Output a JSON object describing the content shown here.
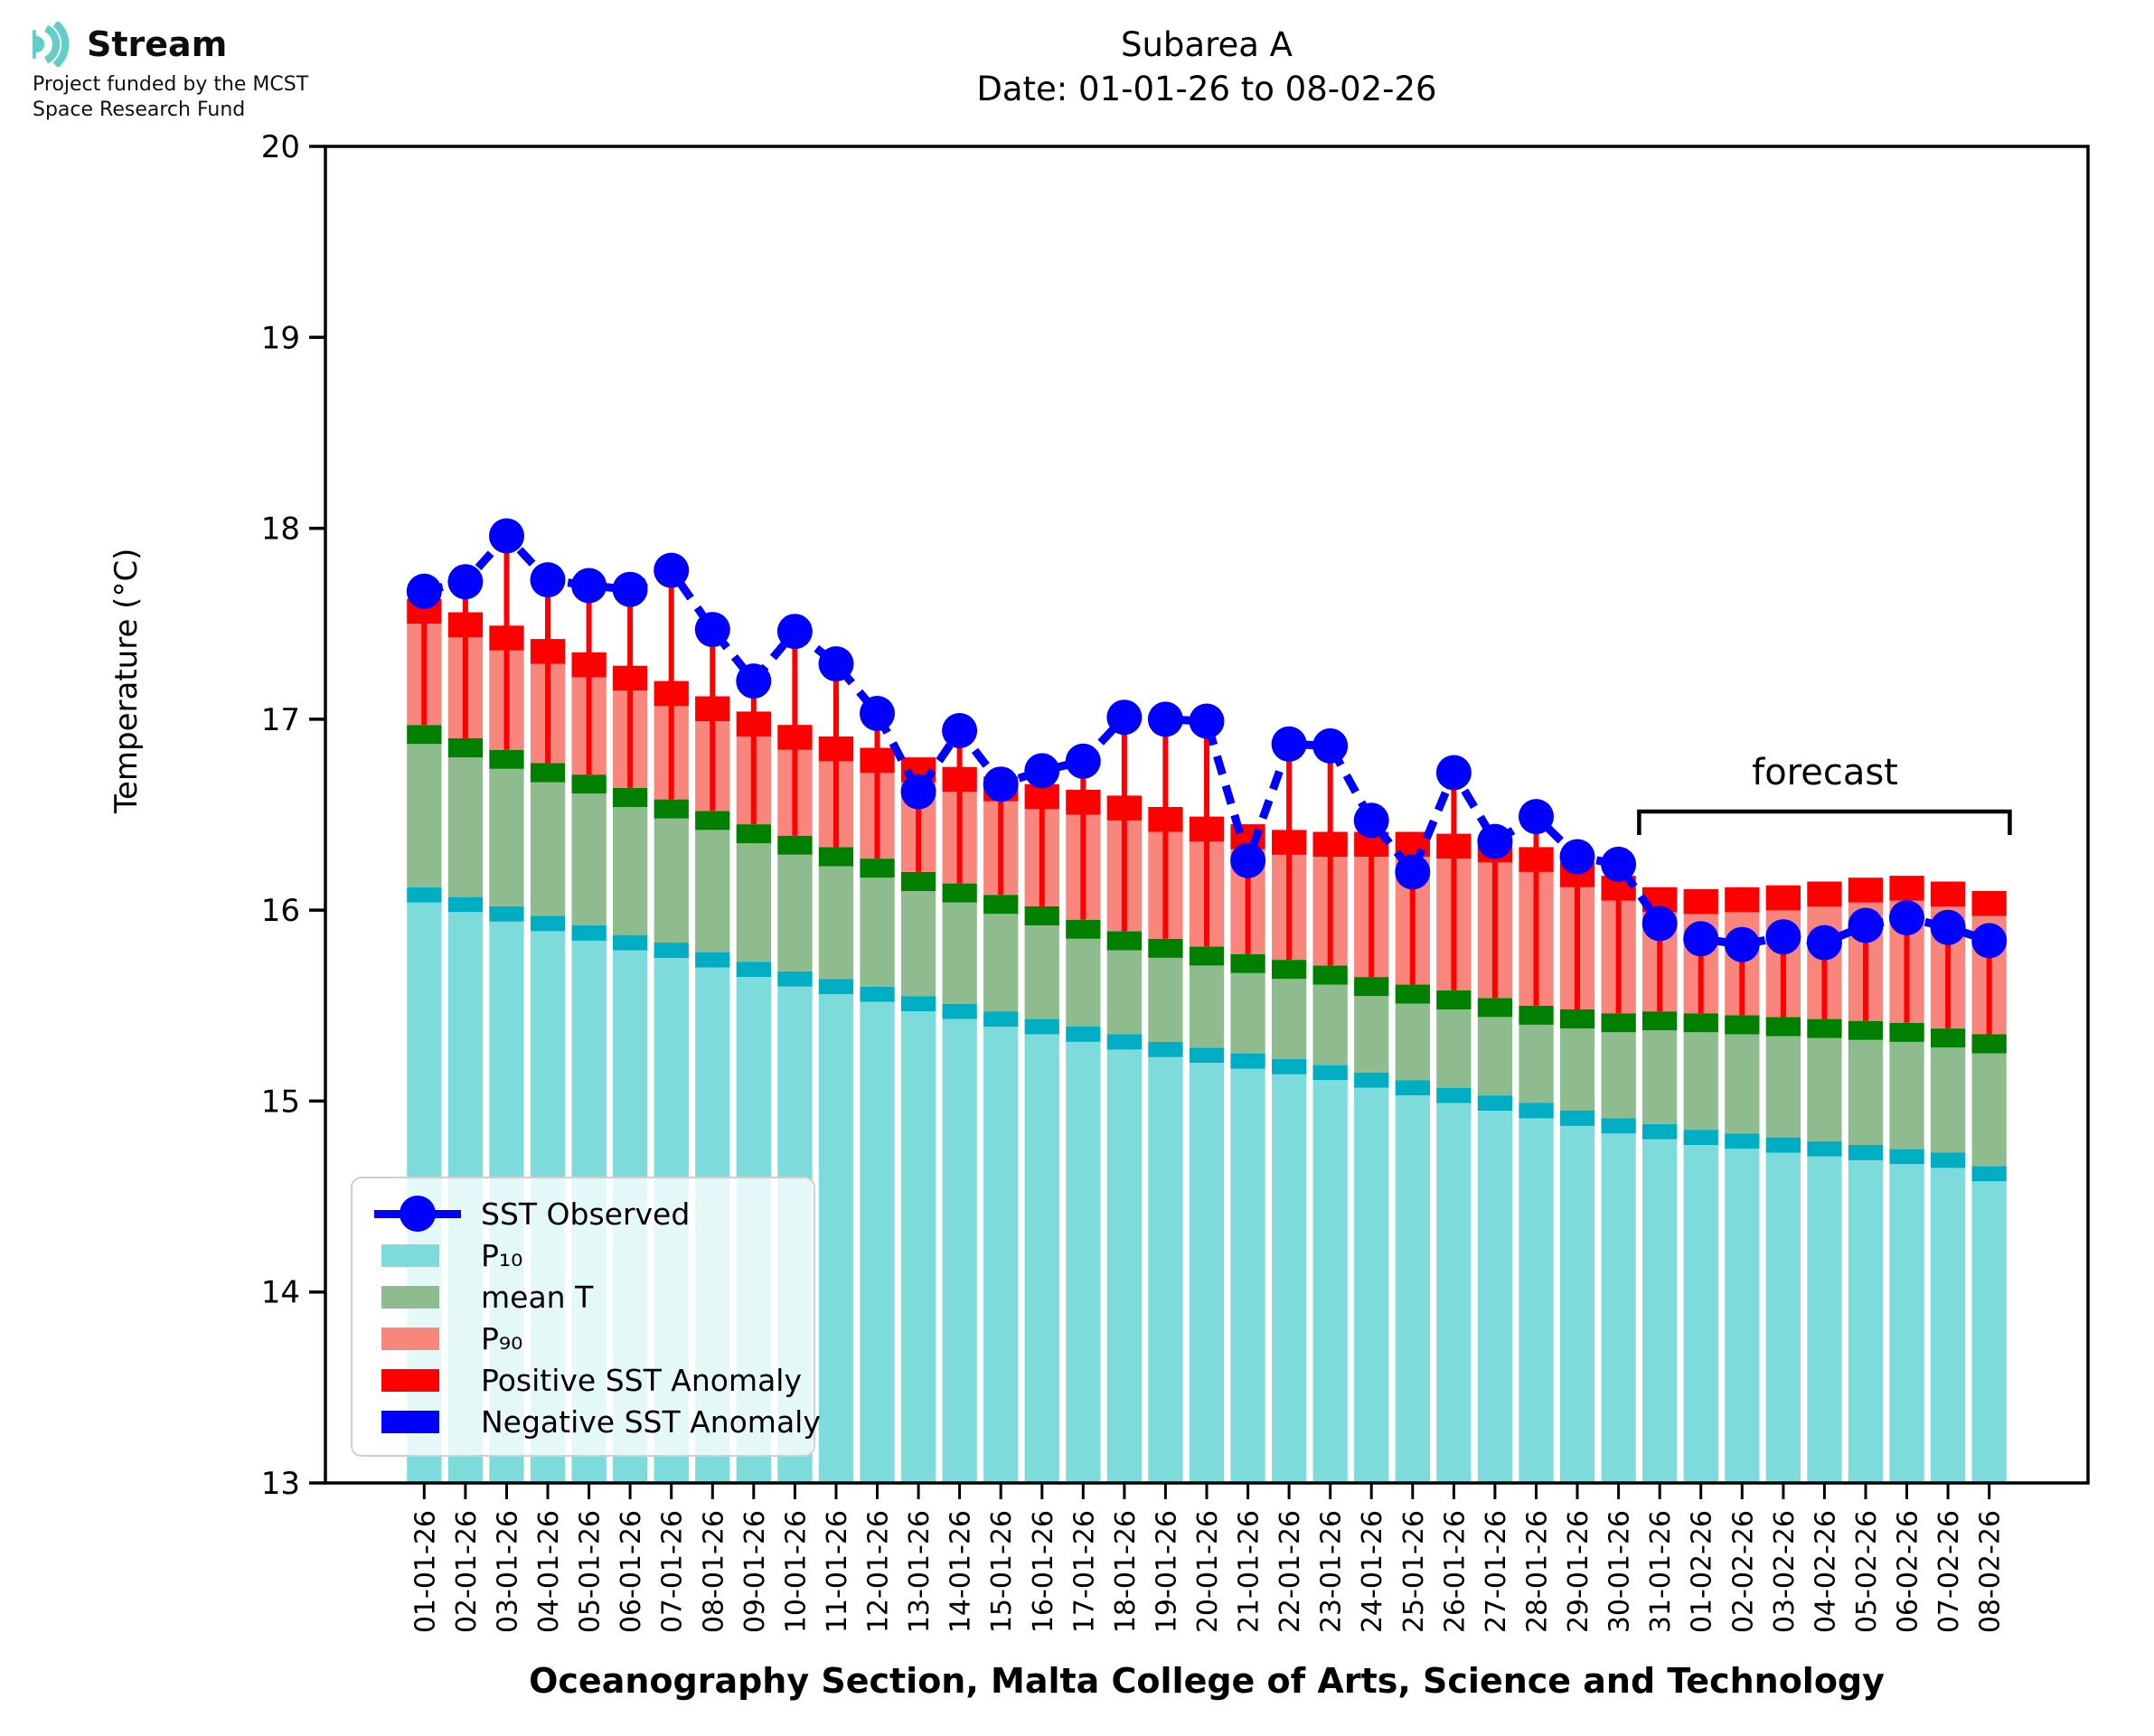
{
  "logo": {
    "brand": "Stream",
    "subtitle_line1": "Project funded by the MCST",
    "subtitle_line2": "Space Research Fund",
    "icon_color": "#63CEC7"
  },
  "title": {
    "line1": "Subarea A",
    "line2": "Date: 01-01-26 to 08-02-26"
  },
  "axes": {
    "y_label": "Temperature (°C)",
    "x_label": "Oceanography Section, Malta College of Arts, Science and Technology",
    "y_ticks": [
      20,
      19,
      18,
      17,
      16,
      15,
      14,
      13
    ],
    "y_min": 13,
    "y_max": 20
  },
  "annotation": {
    "forecast_label": "forecast",
    "forecast_start_date": "31-01-26"
  },
  "legend": {
    "items": [
      {
        "label": "SST Observed",
        "marker": "dot-line",
        "color": "#0000FF"
      },
      {
        "label": "P₁₀",
        "marker": "patch",
        "color": "#7EDBDC"
      },
      {
        "label": "mean T",
        "marker": "patch",
        "color": "#8FBC8F"
      },
      {
        "label": "P₉₀",
        "marker": "patch",
        "color": "#F9867C"
      },
      {
        "label": "Positive SST Anomaly",
        "marker": "patch",
        "color": "#FF0000"
      },
      {
        "label": "Negative SST Anomaly",
        "marker": "patch",
        "color": "#0000FF"
      }
    ]
  },
  "colors": {
    "p10_fill": "#7EDBDC",
    "p10_cap": "#00AEC4",
    "mean_fill": "#8FBC8F",
    "mean_cap": "#008000",
    "p90_fill": "#F9867C",
    "p90_cap": "#FF0000",
    "anomaly_positive": "#FF0000",
    "anomaly_negative": "#0000FF",
    "observed": "#0000FF",
    "spine": "#000000"
  },
  "chart_data": {
    "type": "bar+line",
    "title": "Subarea A",
    "subtitle": "Date: 01-01-26 to 08-02-26",
    "ylabel": "Temperature (°C)",
    "xlabel": "Oceanography Section, Malta College of Arts, Science and Technology",
    "ylim": [
      13,
      20
    ],
    "grid": false,
    "legend_position": "lower left",
    "forecast_start_index": 30,
    "categories": [
      "01-01-26",
      "02-01-26",
      "03-01-26",
      "04-01-26",
      "05-01-26",
      "06-01-26",
      "07-01-26",
      "08-01-26",
      "09-01-26",
      "10-01-26",
      "11-01-26",
      "12-01-26",
      "13-01-26",
      "14-01-26",
      "15-01-26",
      "16-01-26",
      "17-01-26",
      "18-01-26",
      "19-01-26",
      "20-01-26",
      "21-01-26",
      "22-01-26",
      "23-01-26",
      "24-01-26",
      "25-01-26",
      "26-01-26",
      "27-01-26",
      "28-01-26",
      "29-01-26",
      "30-01-26",
      "31-01-26",
      "01-02-26",
      "02-02-26",
      "03-02-26",
      "04-02-26",
      "05-02-26",
      "06-02-26",
      "07-02-26",
      "08-02-26"
    ],
    "series": [
      {
        "name": "SST Observed",
        "type": "line",
        "values": [
          17.67,
          17.72,
          17.96,
          17.73,
          17.7,
          17.68,
          17.78,
          17.47,
          17.2,
          17.46,
          17.29,
          17.03,
          16.62,
          16.94,
          16.66,
          16.73,
          16.78,
          17.01,
          17.0,
          16.99,
          16.26,
          16.87,
          16.86,
          16.47,
          16.2,
          16.72,
          16.36,
          16.49,
          16.28,
          16.24,
          15.93,
          15.85,
          15.82,
          15.86,
          15.83,
          15.92,
          15.96,
          15.91,
          15.84
        ]
      },
      {
        "name": "P10",
        "type": "bar",
        "values": [
          16.12,
          16.07,
          16.02,
          15.97,
          15.92,
          15.87,
          15.83,
          15.78,
          15.73,
          15.68,
          15.64,
          15.6,
          15.55,
          15.51,
          15.47,
          15.43,
          15.39,
          15.35,
          15.31,
          15.28,
          15.25,
          15.22,
          15.19,
          15.15,
          15.11,
          15.07,
          15.03,
          14.99,
          14.95,
          14.91,
          14.88,
          14.85,
          14.83,
          14.81,
          14.79,
          14.77,
          14.75,
          14.73,
          14.66
        ]
      },
      {
        "name": "mean T",
        "type": "bar",
        "values": [
          16.97,
          16.9,
          16.84,
          16.77,
          16.71,
          16.64,
          16.58,
          16.52,
          16.45,
          16.39,
          16.33,
          16.27,
          16.2,
          16.14,
          16.08,
          16.02,
          15.95,
          15.89,
          15.85,
          15.81,
          15.77,
          15.74,
          15.71,
          15.65,
          15.61,
          15.58,
          15.54,
          15.5,
          15.48,
          15.46,
          15.47,
          15.46,
          15.45,
          15.44,
          15.43,
          15.42,
          15.41,
          15.38,
          15.35
        ]
      },
      {
        "name": "P90",
        "type": "bar",
        "values": [
          17.63,
          17.56,
          17.49,
          17.42,
          17.35,
          17.28,
          17.2,
          17.12,
          17.04,
          16.97,
          16.91,
          16.85,
          16.8,
          16.75,
          16.7,
          16.66,
          16.63,
          16.6,
          16.54,
          16.49,
          16.45,
          16.42,
          16.41,
          16.41,
          16.41,
          16.4,
          16.38,
          16.33,
          16.25,
          16.18,
          16.12,
          16.11,
          16.12,
          16.13,
          16.15,
          16.17,
          16.18,
          16.15,
          16.1
        ]
      }
    ]
  }
}
